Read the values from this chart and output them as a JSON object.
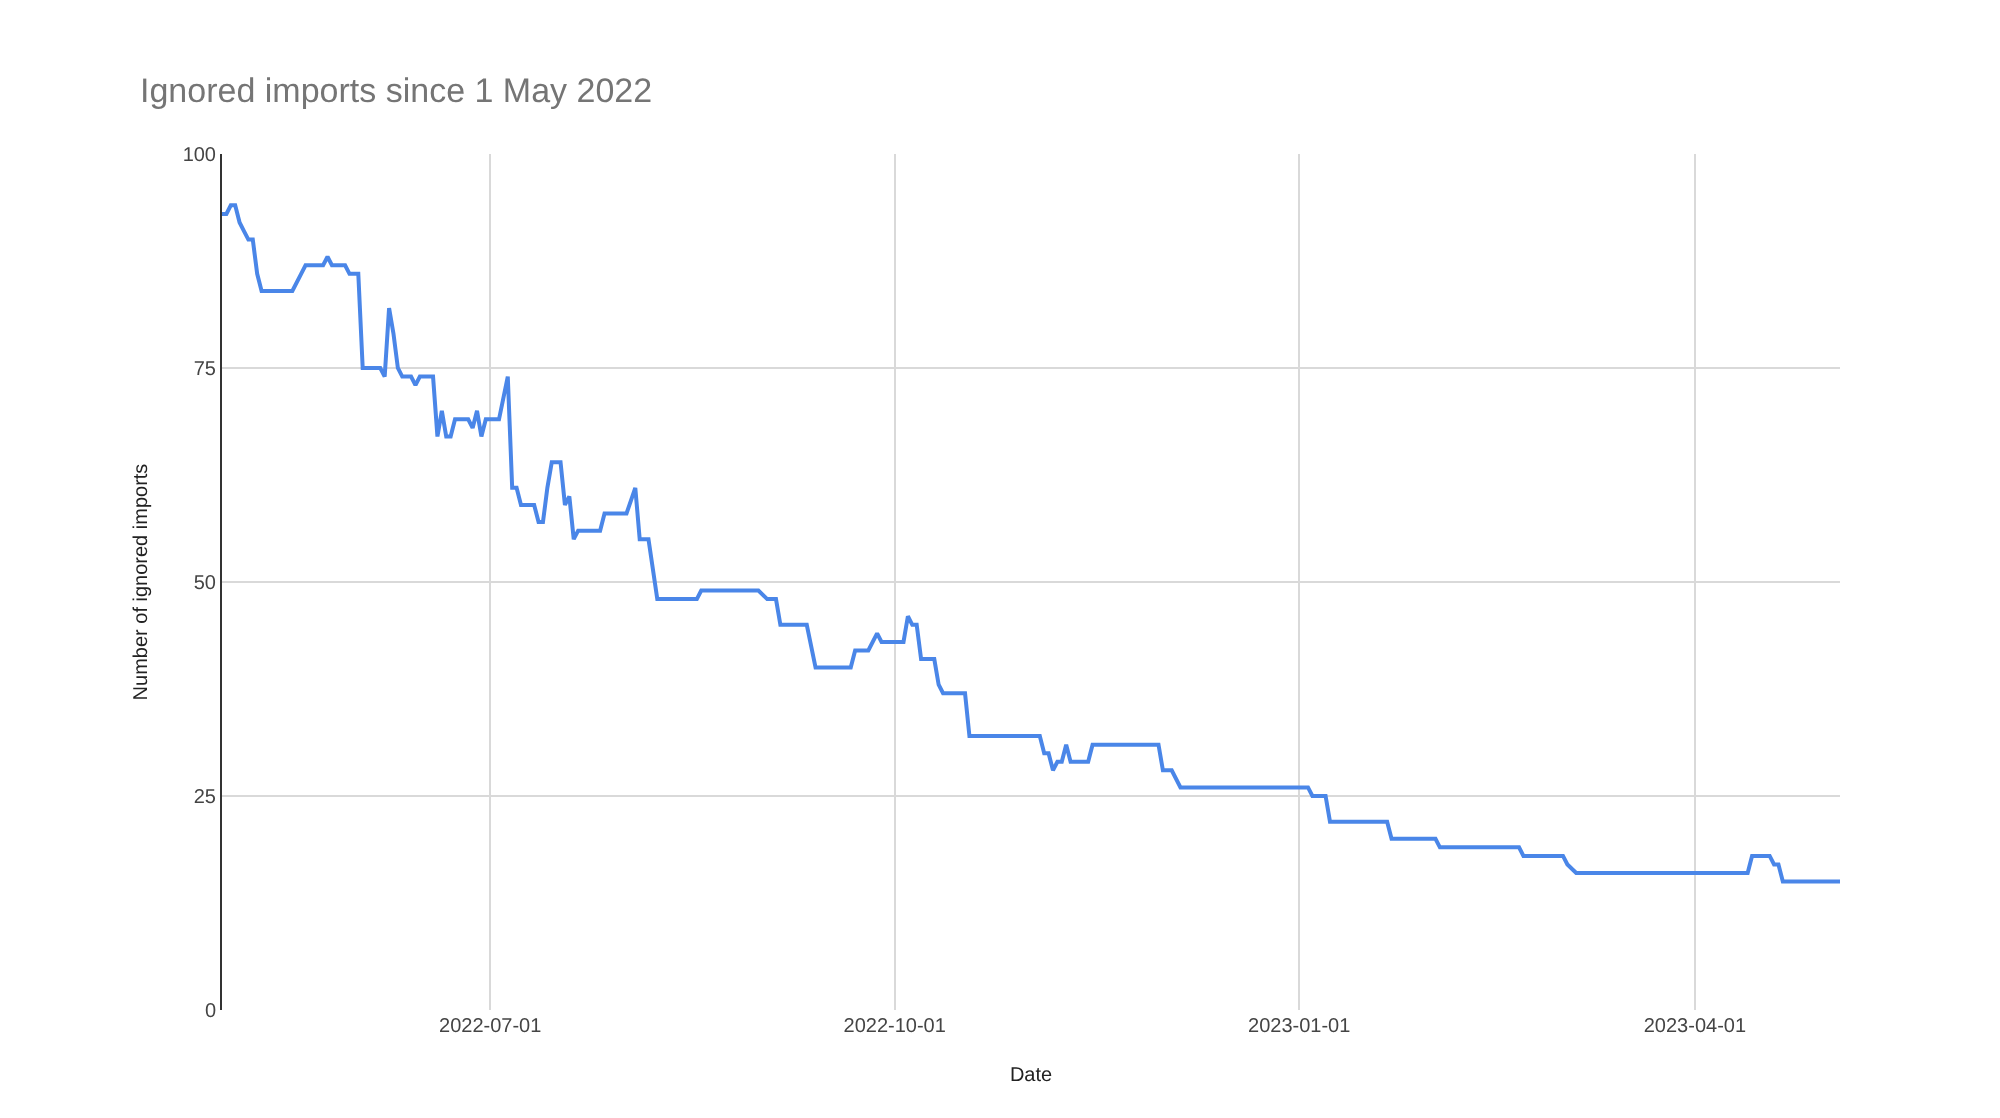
{
  "chart_data": {
    "type": "line",
    "title": "Ignored imports since 1 May 2022",
    "xlabel": "Date",
    "ylabel": "Number of ignored imports",
    "x": [
      "2022-05-01",
      "2022-05-02",
      "2022-05-03",
      "2022-05-04",
      "2022-05-05",
      "2022-05-06",
      "2022-05-07",
      "2022-05-08",
      "2022-05-09",
      "2022-05-10",
      "2022-05-17",
      "2022-05-19",
      "2022-05-20",
      "2022-05-24",
      "2022-05-25",
      "2022-05-26",
      "2022-05-29",
      "2022-05-30",
      "2022-06-01",
      "2022-06-02",
      "2022-06-06",
      "2022-06-07",
      "2022-06-08",
      "2022-06-09",
      "2022-06-10",
      "2022-06-11",
      "2022-06-13",
      "2022-06-14",
      "2022-06-15",
      "2022-06-18",
      "2022-06-19",
      "2022-06-20",
      "2022-06-21",
      "2022-06-22",
      "2022-06-23",
      "2022-06-26",
      "2022-06-27",
      "2022-06-28",
      "2022-06-29",
      "2022-06-30",
      "2022-07-03",
      "2022-07-05",
      "2022-07-06",
      "2022-07-07",
      "2022-07-08",
      "2022-07-11",
      "2022-07-12",
      "2022-07-13",
      "2022-07-14",
      "2022-07-15",
      "2022-07-17",
      "2022-07-18",
      "2022-07-19",
      "2022-07-20",
      "2022-07-21",
      "2022-07-26",
      "2022-07-27",
      "2022-08-01",
      "2022-08-03",
      "2022-08-04",
      "2022-08-06",
      "2022-08-08",
      "2022-08-17",
      "2022-08-18",
      "2022-08-31",
      "2022-09-02",
      "2022-09-04",
      "2022-09-05",
      "2022-09-11",
      "2022-09-13",
      "2022-09-21",
      "2022-09-22",
      "2022-09-25",
      "2022-09-27",
      "2022-09-28",
      "2022-10-03",
      "2022-10-04",
      "2022-10-05",
      "2022-10-06",
      "2022-10-07",
      "2022-10-10",
      "2022-10-11",
      "2022-10-12",
      "2022-10-17",
      "2022-10-18",
      "2022-11-03",
      "2022-11-04",
      "2022-11-05",
      "2022-11-06",
      "2022-11-07",
      "2022-11-08",
      "2022-11-09",
      "2022-11-10",
      "2022-11-14",
      "2022-11-15",
      "2022-11-30",
      "2022-12-01",
      "2022-12-03",
      "2022-12-05",
      "2023-01-03",
      "2023-01-04",
      "2023-01-07",
      "2023-01-08",
      "2023-01-21",
      "2023-01-22",
      "2023-02-01",
      "2023-02-02",
      "2023-02-20",
      "2023-02-21",
      "2023-03-02",
      "2023-03-03",
      "2023-03-05",
      "2023-04-13",
      "2023-04-14",
      "2023-04-18",
      "2023-04-19",
      "2023-04-20",
      "2023-04-21",
      "2023-05-04"
    ],
    "series": [
      {
        "color": "#4a86e8",
        "values": [
          93,
          93,
          94,
          94,
          92,
          91,
          90,
          90,
          86,
          84,
          84,
          86,
          87,
          87,
          88,
          87,
          87,
          86,
          86,
          75,
          75,
          74,
          82,
          79,
          75,
          74,
          74,
          73,
          74,
          74,
          67,
          70,
          67,
          67,
          69,
          69,
          68,
          70,
          67,
          69,
          69,
          74,
          61,
          61,
          59,
          59,
          57,
          57,
          61,
          64,
          64,
          59,
          60,
          55,
          56,
          56,
          58,
          58,
          61,
          55,
          55,
          48,
          48,
          49,
          49,
          48,
          48,
          45,
          45,
          40,
          40,
          42,
          42,
          44,
          43,
          43,
          46,
          45,
          45,
          41,
          41,
          38,
          37,
          37,
          32,
          32,
          30,
          30,
          28,
          29,
          29,
          31,
          29,
          29,
          31,
          31,
          28,
          28,
          26,
          26,
          25,
          25,
          22,
          22,
          20,
          20,
          19,
          19,
          18,
          18,
          17,
          16,
          16,
          18,
          18,
          17,
          17,
          15,
          15
        ]
      }
    ],
    "xlim": [
      "2022-05-01",
      "2023-05-04"
    ],
    "xticks": [
      {
        "value": "2022-07-01",
        "label": "2022-07-01"
      },
      {
        "value": "2022-10-01",
        "label": "2022-10-01"
      },
      {
        "value": "2023-01-01",
        "label": "2023-01-01"
      },
      {
        "value": "2023-04-01",
        "label": "2023-04-01"
      }
    ],
    "ylim": [
      0,
      100
    ],
    "yticks": [
      0,
      25,
      50,
      75,
      100
    ],
    "grid": true,
    "marker": "none",
    "line_style": "solid"
  }
}
